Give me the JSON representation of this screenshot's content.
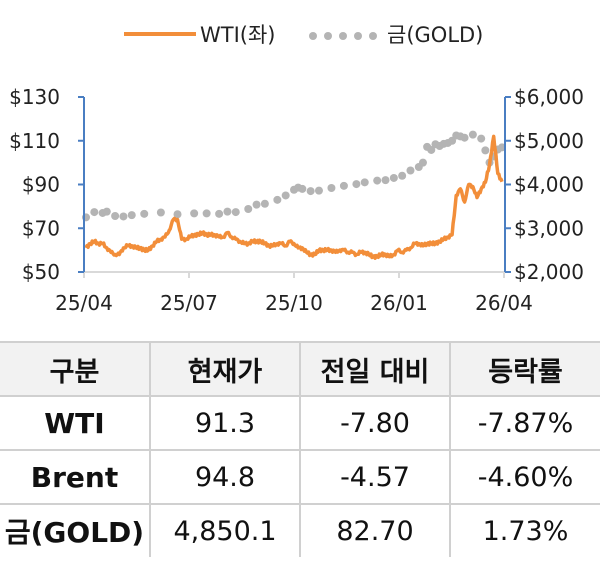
{
  "legend": {
    "wti_label": "WTI(좌)",
    "gold_label": "금(GOLD)"
  },
  "colors": {
    "wti": "#F28E3A",
    "gold": "#B4B4B4",
    "axis": "#4A7EC2",
    "grid": "#D9D9D9"
  },
  "chart_data": {
    "type": "line",
    "title": "",
    "legend": [
      "WTI(좌)",
      "금(GOLD)"
    ],
    "legend_position": "top",
    "x_ticks": [
      "25/04",
      "25/07",
      "25/10",
      "26/01",
      "26/04"
    ],
    "y_left_ticks": [
      "$130",
      "$110",
      "$90",
      "$70",
      "$50"
    ],
    "y_right_ticks": [
      "$6,000",
      "$5,000",
      "$4,000",
      "$3,000",
      "$2,000"
    ],
    "y_left_range": [
      50,
      130
    ],
    "y_right_range": [
      2000,
      6000
    ],
    "grid": false,
    "series": [
      {
        "name": "WTI(좌)",
        "axis": "left",
        "style": "line",
        "points": [
          [
            0.0,
            61
          ],
          [
            0.01,
            63
          ],
          [
            0.02,
            64
          ],
          [
            0.03,
            63
          ],
          [
            0.04,
            63
          ],
          [
            0.05,
            61
          ],
          [
            0.06,
            59
          ],
          [
            0.07,
            58
          ],
          [
            0.08,
            58
          ],
          [
            0.09,
            61
          ],
          [
            0.1,
            62
          ],
          [
            0.11,
            62
          ],
          [
            0.12,
            61
          ],
          [
            0.13,
            61
          ],
          [
            0.14,
            60
          ],
          [
            0.15,
            60
          ],
          [
            0.16,
            62
          ],
          [
            0.17,
            64
          ],
          [
            0.18,
            65
          ],
          [
            0.19,
            66
          ],
          [
            0.2,
            69
          ],
          [
            0.21,
            74
          ],
          [
            0.22,
            74
          ],
          [
            0.23,
            65
          ],
          [
            0.24,
            65
          ],
          [
            0.25,
            66
          ],
          [
            0.26,
            67
          ],
          [
            0.27,
            67
          ],
          [
            0.28,
            68
          ],
          [
            0.29,
            67
          ],
          [
            0.3,
            67
          ],
          [
            0.31,
            67
          ],
          [
            0.32,
            66
          ],
          [
            0.33,
            66
          ],
          [
            0.34,
            68
          ],
          [
            0.35,
            66
          ],
          [
            0.36,
            65
          ],
          [
            0.37,
            64
          ],
          [
            0.38,
            63
          ],
          [
            0.39,
            63
          ],
          [
            0.4,
            64
          ],
          [
            0.41,
            64
          ],
          [
            0.42,
            64
          ],
          [
            0.43,
            63
          ],
          [
            0.44,
            62
          ],
          [
            0.45,
            62
          ],
          [
            0.46,
            63
          ],
          [
            0.47,
            63
          ],
          [
            0.48,
            62
          ],
          [
            0.49,
            64
          ],
          [
            0.5,
            63
          ],
          [
            0.51,
            61
          ],
          [
            0.52,
            61
          ],
          [
            0.53,
            59
          ],
          [
            0.54,
            58
          ],
          [
            0.55,
            58
          ],
          [
            0.56,
            60
          ],
          [
            0.57,
            60
          ],
          [
            0.58,
            60
          ],
          [
            0.59,
            60
          ],
          [
            0.6,
            59
          ],
          [
            0.61,
            60
          ],
          [
            0.62,
            60
          ],
          [
            0.63,
            59
          ],
          [
            0.64,
            59
          ],
          [
            0.65,
            58
          ],
          [
            0.66,
            59
          ],
          [
            0.67,
            59
          ],
          [
            0.68,
            58
          ],
          [
            0.69,
            57
          ],
          [
            0.7,
            57
          ],
          [
            0.71,
            58
          ],
          [
            0.72,
            58
          ],
          [
            0.73,
            57
          ],
          [
            0.74,
            58
          ],
          [
            0.75,
            60
          ],
          [
            0.76,
            59
          ],
          [
            0.77,
            60
          ],
          [
            0.78,
            61
          ],
          [
            0.79,
            63
          ],
          [
            0.8,
            63
          ],
          [
            0.81,
            62
          ],
          [
            0.82,
            63
          ],
          [
            0.83,
            63
          ],
          [
            0.84,
            63
          ],
          [
            0.85,
            64
          ],
          [
            0.86,
            65
          ],
          [
            0.87,
            66
          ],
          [
            0.88,
            67
          ],
          [
            0.89,
            85
          ],
          [
            0.9,
            88
          ],
          [
            0.91,
            82
          ],
          [
            0.92,
            90
          ],
          [
            0.93,
            89
          ],
          [
            0.94,
            84
          ],
          [
            0.95,
            88
          ],
          [
            0.96,
            91
          ],
          [
            0.97,
            99
          ],
          [
            0.98,
            112
          ],
          [
            0.99,
            95
          ],
          [
            1.0,
            91.3
          ]
        ]
      },
      {
        "name": "금(GOLD)",
        "axis": "right",
        "style": "dots",
        "points": [
          [
            0.0,
            3250
          ],
          [
            0.02,
            3370
          ],
          [
            0.04,
            3350
          ],
          [
            0.05,
            3380
          ],
          [
            0.07,
            3280
          ],
          [
            0.09,
            3270
          ],
          [
            0.11,
            3300
          ],
          [
            0.14,
            3330
          ],
          [
            0.18,
            3360
          ],
          [
            0.22,
            3320
          ],
          [
            0.26,
            3340
          ],
          [
            0.29,
            3340
          ],
          [
            0.32,
            3330
          ],
          [
            0.34,
            3380
          ],
          [
            0.36,
            3370
          ],
          [
            0.39,
            3440
          ],
          [
            0.41,
            3540
          ],
          [
            0.43,
            3560
          ],
          [
            0.46,
            3650
          ],
          [
            0.48,
            3750
          ],
          [
            0.5,
            3880
          ],
          [
            0.51,
            3930
          ],
          [
            0.52,
            3900
          ],
          [
            0.54,
            3850
          ],
          [
            0.56,
            3860
          ],
          [
            0.59,
            3920
          ],
          [
            0.62,
            3970
          ],
          [
            0.65,
            4010
          ],
          [
            0.67,
            4050
          ],
          [
            0.7,
            4090
          ],
          [
            0.72,
            4100
          ],
          [
            0.74,
            4150
          ],
          [
            0.76,
            4200
          ],
          [
            0.78,
            4320
          ],
          [
            0.8,
            4400
          ],
          [
            0.81,
            4500
          ],
          [
            0.82,
            4860
          ],
          [
            0.83,
            4790
          ],
          [
            0.84,
            4920
          ],
          [
            0.85,
            4880
          ],
          [
            0.86,
            4930
          ],
          [
            0.87,
            4950
          ],
          [
            0.88,
            5000
          ],
          [
            0.89,
            5120
          ],
          [
            0.9,
            5100
          ],
          [
            0.91,
            5070
          ],
          [
            0.93,
            5140
          ],
          [
            0.95,
            5050
          ],
          [
            0.96,
            4780
          ],
          [
            0.97,
            4500
          ],
          [
            0.98,
            4640
          ],
          [
            0.99,
            4800
          ],
          [
            1.0,
            4850
          ]
        ]
      }
    ]
  },
  "table": {
    "headers": [
      "구분",
      "현재가",
      "전일 대비",
      "등락률"
    ],
    "rows": [
      {
        "name": "WTI",
        "price": "91.3",
        "change": "-7.80",
        "rate": "-7.87%"
      },
      {
        "name": "Brent",
        "price": "94.8",
        "change": "-4.57",
        "rate": "-4.60%"
      },
      {
        "name": "금(GOLD)",
        "price": "4,850.1",
        "change": "82.70",
        "rate": "1.73%"
      }
    ]
  }
}
